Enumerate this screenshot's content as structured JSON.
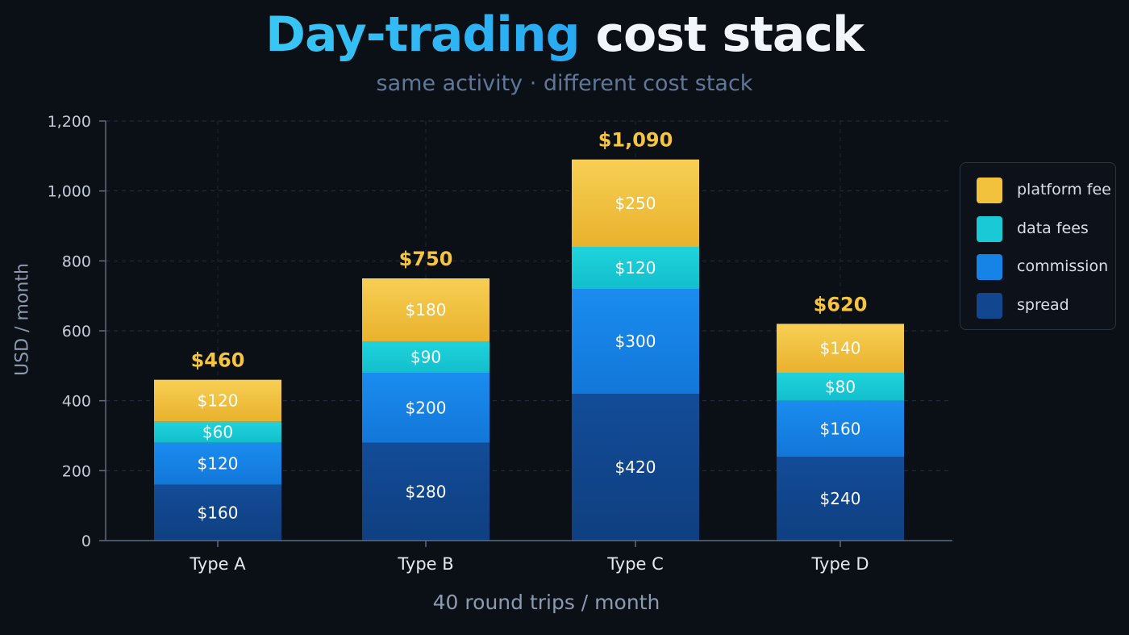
{
  "title_accent": "Day-trading",
  "title_rest": "cost stack",
  "subtitle": "same activity · different cost stack",
  "colors": {
    "spread": "#12478f",
    "commission": "#1684e6",
    "data fees": "#19c9d5",
    "platform fee": "#f3c23d",
    "total_label": "#f5c542",
    "segment_label": "#ffffff",
    "background": "#0b0f16"
  },
  "chart_data": {
    "type": "bar",
    "stacked": true,
    "categories": [
      "Type A",
      "Type B",
      "Type C",
      "Type D"
    ],
    "series": [
      {
        "name": "spread",
        "values": [
          160,
          280,
          420,
          240
        ]
      },
      {
        "name": "commission",
        "values": [
          120,
          200,
          300,
          160
        ]
      },
      {
        "name": "data fees",
        "values": [
          60,
          90,
          120,
          80
        ]
      },
      {
        "name": "platform fee",
        "values": [
          120,
          180,
          250,
          140
        ]
      }
    ],
    "segment_labels": [
      [
        "$160",
        "$280",
        "$420",
        "$240"
      ],
      [
        "$120",
        "$200",
        "$300",
        "$160"
      ],
      [
        "$60",
        "$90",
        "$120",
        "$80"
      ],
      [
        "$120",
        "$180",
        "$250",
        "$140"
      ]
    ],
    "totals": [
      460,
      750,
      1090,
      620
    ],
    "total_labels": [
      "$460",
      "$750",
      "$1,090",
      "$620"
    ],
    "xlabel": "40 round trips / month",
    "ylabel": "USD / month",
    "ylim": [
      0,
      1200
    ],
    "yticks": [
      0,
      200,
      400,
      600,
      800,
      1000,
      1200
    ],
    "ytick_labels": [
      "0",
      "200",
      "400",
      "600",
      "800",
      "1,000",
      "1,200"
    ],
    "grid": true,
    "legend_position": "right",
    "legend": [
      "platform fee",
      "data fees",
      "commission",
      "spread"
    ]
  }
}
